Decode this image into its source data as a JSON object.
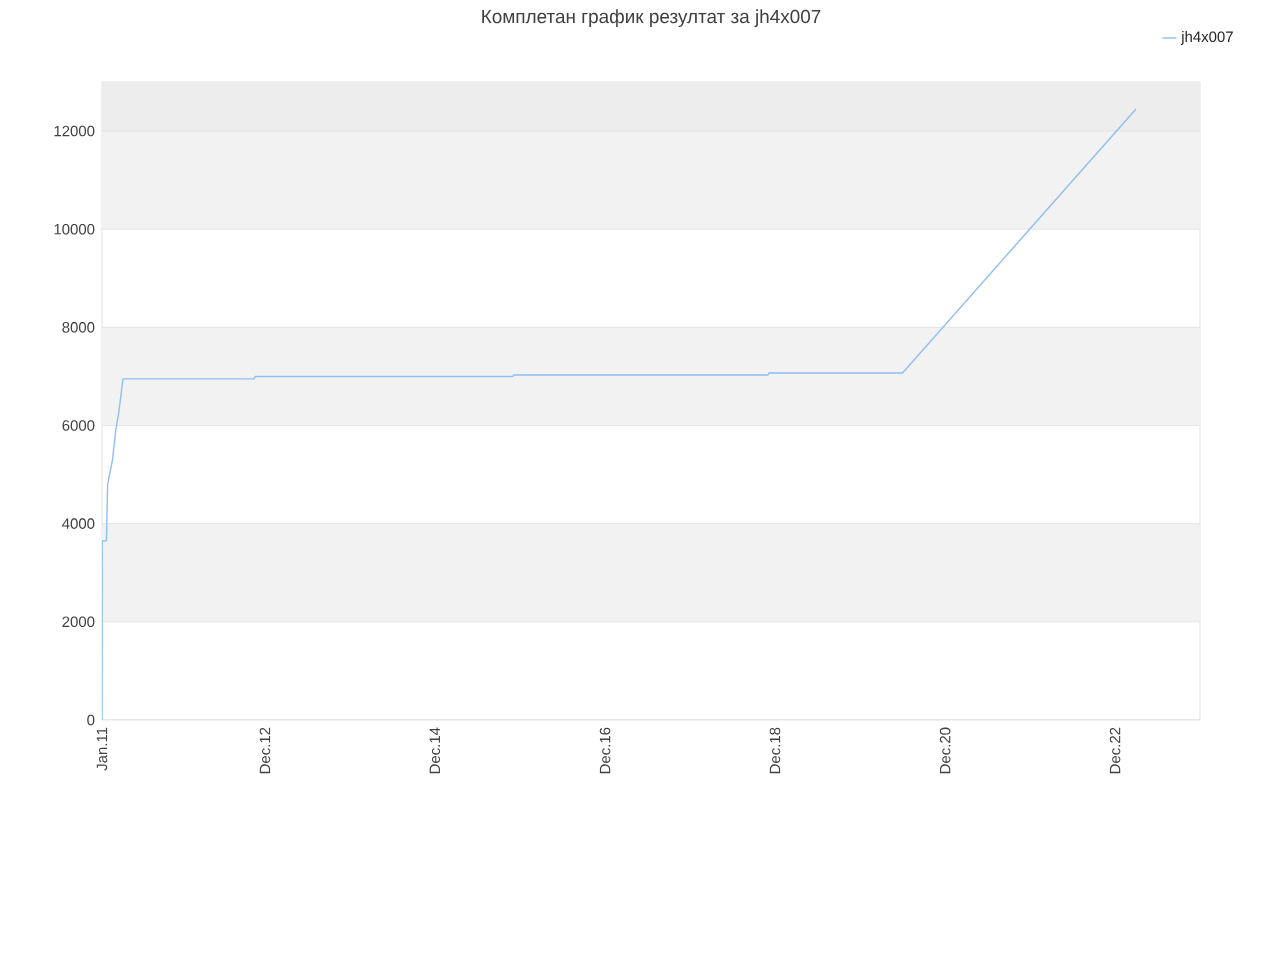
{
  "chart_data": {
    "type": "line",
    "title": "Комплетан график резултат за jh4x007",
    "x": [
      "2011-01-01",
      "2011-01-02",
      "2011-01-20",
      "2011-01-25",
      "2011-02-15",
      "2011-03-01",
      "2011-03-15",
      "2011-04-01",
      "2012-10-15",
      "2012-10-20",
      "2015-11-01",
      "2015-11-05",
      "2018-11-01",
      "2018-11-05",
      "2020-06-01",
      "2023-03-01"
    ],
    "series": [
      {
        "name": "jh4x007",
        "color": "#8fbff0",
        "values": [
          0,
          3650,
          3650,
          4800,
          5300,
          5900,
          6300,
          6950,
          6950,
          7000,
          7000,
          7030,
          7030,
          7070,
          7070,
          12450
        ]
      }
    ],
    "xlim": [
      "2011-01-01",
      "2023-12-01"
    ],
    "xticks": [
      {
        "value": "2011-01-01",
        "label": "Jan.11"
      },
      {
        "value": "2012-12-01",
        "label": "Dec.12"
      },
      {
        "value": "2014-12-01",
        "label": "Dec.14"
      },
      {
        "value": "2016-12-01",
        "label": "Dec.16"
      },
      {
        "value": "2018-12-01",
        "label": "Dec.18"
      },
      {
        "value": "2020-12-01",
        "label": "Dec.20"
      },
      {
        "value": "2022-12-01",
        "label": "Dec.22"
      }
    ],
    "ylim": [
      0,
      13000
    ],
    "yticks": [
      0,
      2000,
      4000,
      6000,
      8000,
      10000,
      12000
    ],
    "bands": [
      {
        "axis": "y",
        "from": 12000,
        "to": 13000,
        "color": "#ededed"
      }
    ],
    "grid": "y",
    "legend": "top right",
    "marker": "none",
    "line_style": "solid"
  }
}
